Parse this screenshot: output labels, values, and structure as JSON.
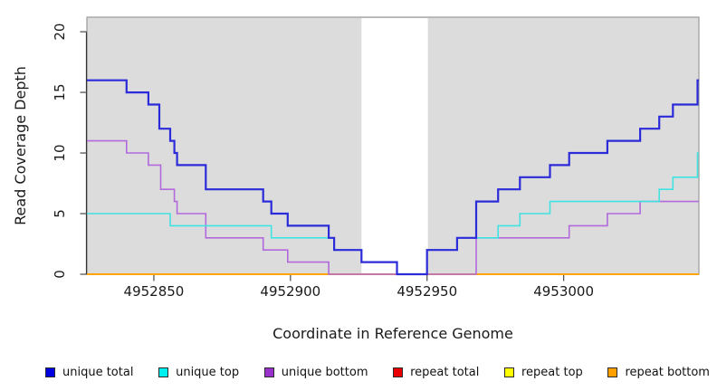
{
  "chart_data": {
    "type": "line",
    "subtype": "step-coverage-plot",
    "title": "",
    "xlabel": "Coordinate in Reference Genome",
    "ylabel": "Read Coverage Depth",
    "xlim": [
      4952825.5,
      4953049.5
    ],
    "ylim": [
      0,
      21.2
    ],
    "x_ticks": [
      4952850,
      4952900,
      4952950,
      4953000
    ],
    "y_ticks": [
      0,
      5,
      10,
      15,
      20
    ],
    "grid": "off",
    "panel_bg": "#DCDCDC",
    "panel_border_color": "#9A9A9A",
    "axis_color": "#333333",
    "tick_color": "#555555",
    "white_band": {
      "from": 4952926,
      "to": 4952950.3,
      "color": "#FFFFFF"
    },
    "legend_position": "bottom",
    "series": [
      {
        "name": "unique total",
        "color": "#2B2BD9",
        "legend_color": "#0000E0",
        "width": 2.2,
        "z": 6,
        "steps": [
          [
            4952825.5,
            16
          ],
          [
            4952840,
            15
          ],
          [
            4952848,
            14
          ],
          [
            4952852,
            12
          ],
          [
            4952856,
            11
          ],
          [
            4952857.5,
            10
          ],
          [
            4952858.5,
            9
          ],
          [
            4952869,
            7
          ],
          [
            4952890,
            6
          ],
          [
            4952893,
            5
          ],
          [
            4952899,
            4
          ],
          [
            4952914,
            3
          ],
          [
            4952916,
            2
          ],
          [
            4952926,
            1
          ],
          [
            4952939,
            0
          ],
          [
            4952950,
            2
          ],
          [
            4952961,
            3
          ],
          [
            4952968,
            6
          ],
          [
            4952976,
            7
          ],
          [
            4952984,
            8
          ],
          [
            4952995,
            9
          ],
          [
            4953002,
            10
          ],
          [
            4953016,
            11
          ],
          [
            4953028,
            12
          ],
          [
            4953035,
            13
          ],
          [
            4953040,
            14
          ],
          [
            4953049,
            16
          ]
        ]
      },
      {
        "name": "unique top",
        "color": "#40E2E2",
        "legend_color": "#00F0F0",
        "width": 1.6,
        "z": 5,
        "steps": [
          [
            4952825.5,
            5
          ],
          [
            4952856,
            4
          ],
          [
            4952893,
            3
          ],
          [
            4952916,
            2
          ],
          [
            4952926,
            1
          ],
          [
            4952939,
            0
          ],
          [
            4952950,
            2
          ],
          [
            4952961,
            3
          ],
          [
            4952976,
            4
          ],
          [
            4952984,
            5
          ],
          [
            4952995,
            6
          ],
          [
            4953035,
            7
          ],
          [
            4953040,
            8
          ],
          [
            4953049,
            10
          ]
        ]
      },
      {
        "name": "unique bottom",
        "color": "#B169DB",
        "legend_color": "#9932CC",
        "width": 1.6,
        "z": 4,
        "steps": [
          [
            4952825.5,
            11
          ],
          [
            4952840,
            10
          ],
          [
            4952848,
            9
          ],
          [
            4952852.5,
            7
          ],
          [
            4952857.5,
            6
          ],
          [
            4952858.5,
            5
          ],
          [
            4952869,
            3
          ],
          [
            4952890,
            2
          ],
          [
            4952899,
            1
          ],
          [
            4952914,
            0
          ],
          [
            4952968,
            3
          ],
          [
            4953002,
            4
          ],
          [
            4953016,
            5
          ],
          [
            4953028,
            6
          ]
        ]
      },
      {
        "name": "repeat total",
        "color": "#E03131",
        "legend_color": "#E80000",
        "width": 1.6,
        "z": 1,
        "steps": [
          [
            4952825.5,
            0
          ]
        ]
      },
      {
        "name": "repeat top",
        "color": "#FFFF00",
        "legend_color": "#FFFF00",
        "width": 1.6,
        "z": 2,
        "steps": [
          [
            4952825.5,
            0
          ]
        ]
      },
      {
        "name": "repeat bottom",
        "color": "#FFA500",
        "legend_color": "#FFA000",
        "width": 2.0,
        "z": 3,
        "steps": [
          [
            4952825.5,
            0
          ]
        ]
      }
    ]
  }
}
